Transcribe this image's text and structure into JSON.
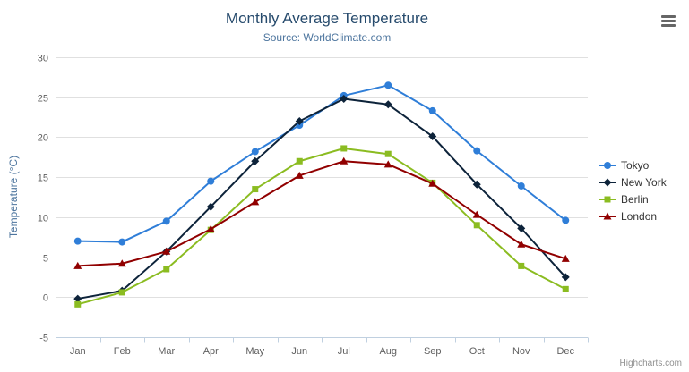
{
  "chart_data": {
    "type": "line",
    "title": "Monthly Average Temperature",
    "subtitle": "Source: WorldClimate.com",
    "xlabel": "",
    "ylabel": "Temperature (°C)",
    "ylim": [
      -5,
      30
    ],
    "yticks": [
      -5,
      0,
      5,
      10,
      15,
      20,
      25,
      30
    ],
    "grid": true,
    "legend_position": "right",
    "categories": [
      "Jan",
      "Feb",
      "Mar",
      "Apr",
      "May",
      "Jun",
      "Jul",
      "Aug",
      "Sep",
      "Oct",
      "Nov",
      "Dec"
    ],
    "series": [
      {
        "name": "Tokyo",
        "color": "#2f7ed8",
        "marker": "circle",
        "values": [
          7.0,
          6.9,
          9.5,
          14.5,
          18.2,
          21.5,
          25.2,
          26.5,
          23.3,
          18.3,
          13.9,
          9.6
        ]
      },
      {
        "name": "New York",
        "color": "#0d233a",
        "marker": "diamond",
        "values": [
          -0.2,
          0.8,
          5.7,
          11.3,
          17.0,
          22.0,
          24.8,
          24.1,
          20.1,
          14.1,
          8.6,
          2.5
        ]
      },
      {
        "name": "Berlin",
        "color": "#8bbc21",
        "marker": "square",
        "values": [
          -0.9,
          0.6,
          3.5,
          8.4,
          13.5,
          17.0,
          18.6,
          17.9,
          14.3,
          9.0,
          3.9,
          1.0
        ]
      },
      {
        "name": "London",
        "color": "#910000",
        "marker": "triangle",
        "values": [
          3.9,
          4.2,
          5.7,
          8.5,
          11.9,
          15.2,
          17.0,
          16.6,
          14.2,
          10.3,
          6.6,
          4.8
        ]
      }
    ]
  },
  "credits": "Highcharts.com",
  "icons": {
    "menu": "hamburger-menu-icon"
  },
  "colors": {
    "title": "#274b6d",
    "subtitle": "#4d759e",
    "axis_title": "#4d759e",
    "axis_label": "#606060",
    "grid": "#e0e0e0",
    "axis_line": "#c0d0e0",
    "legend_text": "#333333",
    "credits": "#909090"
  }
}
